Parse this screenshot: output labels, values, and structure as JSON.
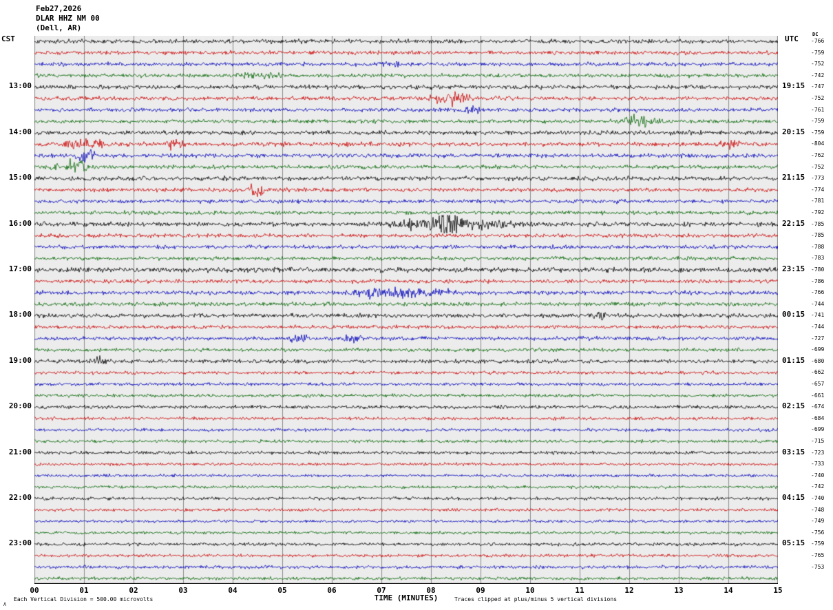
{
  "header": {
    "date": "Feb27,2026",
    "station": "DLAR HHZ NM 00",
    "location": "(Dell, AR)"
  },
  "axes": {
    "left_label": "CST",
    "right_label": "UTC",
    "dc_header": "DC",
    "x_label": "TIME (MINUTES)",
    "x_ticks": [
      "00",
      "01",
      "02",
      "03",
      "04",
      "05",
      "06",
      "07",
      "08",
      "09",
      "10",
      "11",
      "12",
      "13",
      "14",
      "15"
    ]
  },
  "footer": {
    "left": "Each Vertical Division =  500.00 microvolts",
    "right": "Traces clipped at plus/minus 5 vertical divisions",
    "corner_mark": "Λ"
  },
  "left_time_labels": [
    {
      "row": 4,
      "label": "13:00"
    },
    {
      "row": 8,
      "label": "14:00"
    },
    {
      "row": 12,
      "label": "15:00"
    },
    {
      "row": 16,
      "label": "16:00"
    },
    {
      "row": 20,
      "label": "17:00"
    },
    {
      "row": 24,
      "label": "18:00"
    },
    {
      "row": 28,
      "label": "19:00"
    },
    {
      "row": 32,
      "label": "20:00"
    },
    {
      "row": 36,
      "label": "21:00"
    },
    {
      "row": 40,
      "label": "22:00"
    },
    {
      "row": 44,
      "label": "23:00"
    }
  ],
  "right_time_labels": [
    {
      "row": 4,
      "label": "19:15"
    },
    {
      "row": 8,
      "label": "20:15"
    },
    {
      "row": 12,
      "label": "21:15"
    },
    {
      "row": 16,
      "label": "22:15"
    },
    {
      "row": 20,
      "label": "23:15"
    },
    {
      "row": 24,
      "label": "00:15"
    },
    {
      "row": 28,
      "label": "01:15"
    },
    {
      "row": 32,
      "label": "02:15"
    },
    {
      "row": 36,
      "label": "03:15"
    },
    {
      "row": 40,
      "label": "04:15"
    },
    {
      "row": 44,
      "label": "05:15"
    }
  ],
  "chart_data": {
    "type": "line",
    "title": "Helicorder seismogram DLAR HHZ NM 00 (Dell, AR) Feb27,2026",
    "xlabel": "TIME (MINUTES)",
    "x_range": [
      0,
      15
    ],
    "minutes_per_row": 15,
    "grid": true,
    "trace_colors": [
      "#000000",
      "#cc0000",
      "#0000bb",
      "#006400"
    ],
    "clip_note": "Traces clipped at plus/minus 5 vertical divisions",
    "vertical_division_microvolts": 500.0,
    "rows": [
      {
        "dc": "-766",
        "noise": 1.3,
        "events": []
      },
      {
        "dc": "-759",
        "noise": 1.2,
        "events": []
      },
      {
        "dc": "-752",
        "noise": 1.2,
        "events": [
          [
            6.9,
            7.4,
            1.5
          ]
        ]
      },
      {
        "dc": "-742",
        "noise": 1.2,
        "events": [
          [
            4.0,
            5.2,
            0.8
          ]
        ]
      },
      {
        "dc": "-747",
        "noise": 1.3,
        "events": []
      },
      {
        "dc": "-752",
        "noise": 1.2,
        "events": [
          [
            7.9,
            8.9,
            2.5
          ]
        ]
      },
      {
        "dc": "-761",
        "noise": 1.2,
        "events": [
          [
            8.5,
            9.2,
            1.2
          ]
        ]
      },
      {
        "dc": "-759",
        "noise": 1.2,
        "events": [
          [
            11.7,
            12.8,
            2.2
          ]
        ]
      },
      {
        "dc": "-759",
        "noise": 1.3,
        "events": []
      },
      {
        "dc": "-804",
        "noise": 1.3,
        "events": [
          [
            0.4,
            1.6,
            2.5
          ],
          [
            2.5,
            3.1,
            2.0
          ],
          [
            13.8,
            14.3,
            2.0
          ]
        ]
      },
      {
        "dc": "-762",
        "noise": 1.3,
        "events": [
          [
            0.8,
            1.3,
            3.0
          ]
        ]
      },
      {
        "dc": "-752",
        "noise": 1.2,
        "events": [
          [
            0.2,
            0.5,
            1.5
          ],
          [
            0.6,
            1.1,
            4.0
          ]
        ]
      },
      {
        "dc": "-773",
        "noise": 1.3,
        "events": []
      },
      {
        "dc": "-774",
        "noise": 1.2,
        "events": [
          [
            4.3,
            4.7,
            4.0
          ]
        ]
      },
      {
        "dc": "-781",
        "noise": 1.2,
        "events": []
      },
      {
        "dc": "-792",
        "noise": 1.2,
        "events": []
      },
      {
        "dc": "-785",
        "noise": 1.4,
        "events": [
          [
            6.9,
            9.9,
            2.2
          ],
          [
            8.1,
            8.6,
            9.0
          ]
        ]
      },
      {
        "dc": "-785",
        "noise": 1.2,
        "events": []
      },
      {
        "dc": "-788",
        "noise": 1.2,
        "events": []
      },
      {
        "dc": "-783",
        "noise": 1.2,
        "events": []
      },
      {
        "dc": "-780",
        "noise": 1.5,
        "events": []
      },
      {
        "dc": "-786",
        "noise": 1.2,
        "events": []
      },
      {
        "dc": "-766",
        "noise": 1.3,
        "events": [
          [
            6.1,
            8.7,
            2.0
          ],
          [
            6.7,
            7.1,
            2.8
          ]
        ]
      },
      {
        "dc": "-744",
        "noise": 1.2,
        "events": []
      },
      {
        "dc": "-741",
        "noise": 1.3,
        "events": [
          [
            11.2,
            11.6,
            1.8
          ]
        ]
      },
      {
        "dc": "-744",
        "noise": 1.1,
        "events": []
      },
      {
        "dc": "-727",
        "noise": 1.2,
        "events": [
          [
            5.1,
            5.6,
            1.6
          ],
          [
            6.2,
            6.7,
            1.8
          ]
        ]
      },
      {
        "dc": "-699",
        "noise": 1.1,
        "events": []
      },
      {
        "dc": "-680",
        "noise": 1.2,
        "events": [
          [
            1.1,
            1.5,
            1.5
          ]
        ]
      },
      {
        "dc": "-662",
        "noise": 1.0,
        "events": []
      },
      {
        "dc": "-657",
        "noise": 1.0,
        "events": []
      },
      {
        "dc": "-661",
        "noise": 1.0,
        "events": []
      },
      {
        "dc": "-674",
        "noise": 1.1,
        "events": []
      },
      {
        "dc": "-684",
        "noise": 0.95,
        "events": []
      },
      {
        "dc": "-699",
        "noise": 0.95,
        "events": []
      },
      {
        "dc": "-715",
        "noise": 0.95,
        "events": []
      },
      {
        "dc": "-723",
        "noise": 1.0,
        "events": []
      },
      {
        "dc": "-733",
        "noise": 0.9,
        "events": []
      },
      {
        "dc": "-740",
        "noise": 0.9,
        "events": []
      },
      {
        "dc": "-742",
        "noise": 0.9,
        "events": []
      },
      {
        "dc": "-740",
        "noise": 1.0,
        "events": []
      },
      {
        "dc": "-748",
        "noise": 0.9,
        "events": []
      },
      {
        "dc": "-749",
        "noise": 0.9,
        "events": []
      },
      {
        "dc": "-756",
        "noise": 0.9,
        "events": []
      },
      {
        "dc": "-759",
        "noise": 1.0,
        "events": []
      },
      {
        "dc": "-765",
        "noise": 0.95,
        "events": []
      },
      {
        "dc": "-753",
        "noise": 1.0,
        "events": []
      },
      {
        "dc": "",
        "noise": 1.0,
        "events": []
      }
    ]
  }
}
